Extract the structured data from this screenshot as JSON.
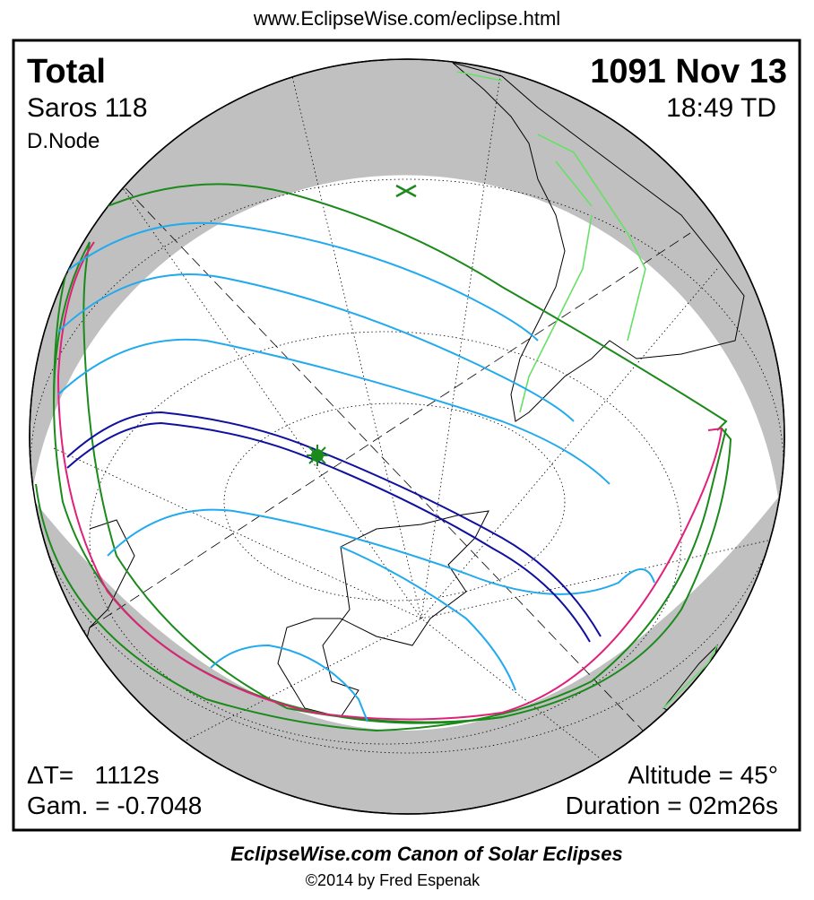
{
  "header": {
    "url": "www.EclipseWise.com/eclipse.html"
  },
  "eclipse": {
    "type": "Total",
    "date": "1091 Nov 13",
    "saros": "Saros 118",
    "time": "18:49 TD",
    "node": "D.Node",
    "delta_t": "ΔT=   1112s",
    "gamma": "Gam. = -0.7048",
    "altitude": "Altitude = 45°",
    "duration": "Duration = 02m26s"
  },
  "footer": {
    "title": "EclipseWise.com Canon of Solar Eclipses",
    "copyright": "©2014 by Fred Espenak"
  }
}
